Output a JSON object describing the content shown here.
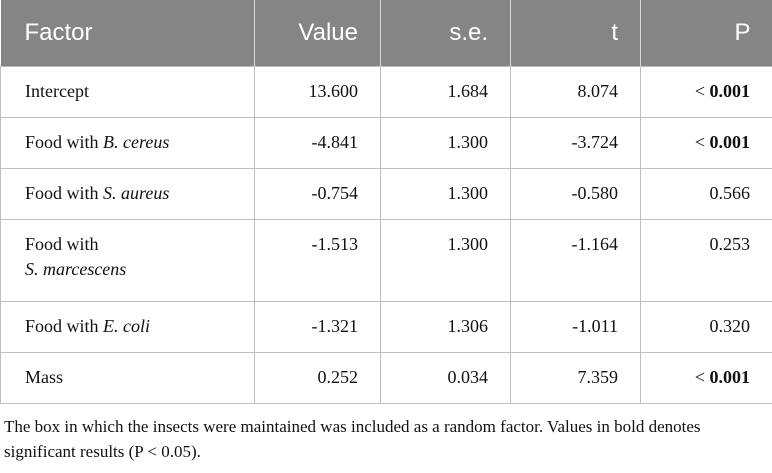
{
  "table": {
    "headers": [
      "Factor",
      "Value",
      "s.e.",
      "t",
      "P"
    ],
    "rows": [
      {
        "factor": "Intercept",
        "value": "13.600",
        "se": "1.684",
        "t": "8.074",
        "p_sign": "<",
        "p": "0.001",
        "bold": true
      },
      {
        "factor": "Food with",
        "species": "B. cereus",
        "value": "-4.841",
        "se": "1.300",
        "t": "-3.724",
        "p_sign": "<",
        "p": "0.001",
        "bold": true
      },
      {
        "factor": "Food with",
        "species": "S. aureus",
        "value": "-0.754",
        "se": "1.300",
        "t": "-0.580",
        "p": "0.566",
        "bold": false
      },
      {
        "factor": "Food with",
        "species": "S. marcescens",
        "value": "-1.513",
        "se": "1.300",
        "t": "-1.164",
        "p": "0.253",
        "bold": false
      },
      {
        "factor": "Food with",
        "species": "E. coli",
        "value": "-1.321",
        "se": "1.306",
        "t": "-1.011",
        "p": "0.320",
        "bold": false
      },
      {
        "factor": "Mass",
        "value": "0.252",
        "se": "0.034",
        "t": "7.359",
        "p_sign": "<",
        "p": "0.001",
        "bold": true
      }
    ],
    "footnote": "The box in which the insects were maintained was included as a random factor. Values in bold denotes significant results (P < 0.05)."
  }
}
